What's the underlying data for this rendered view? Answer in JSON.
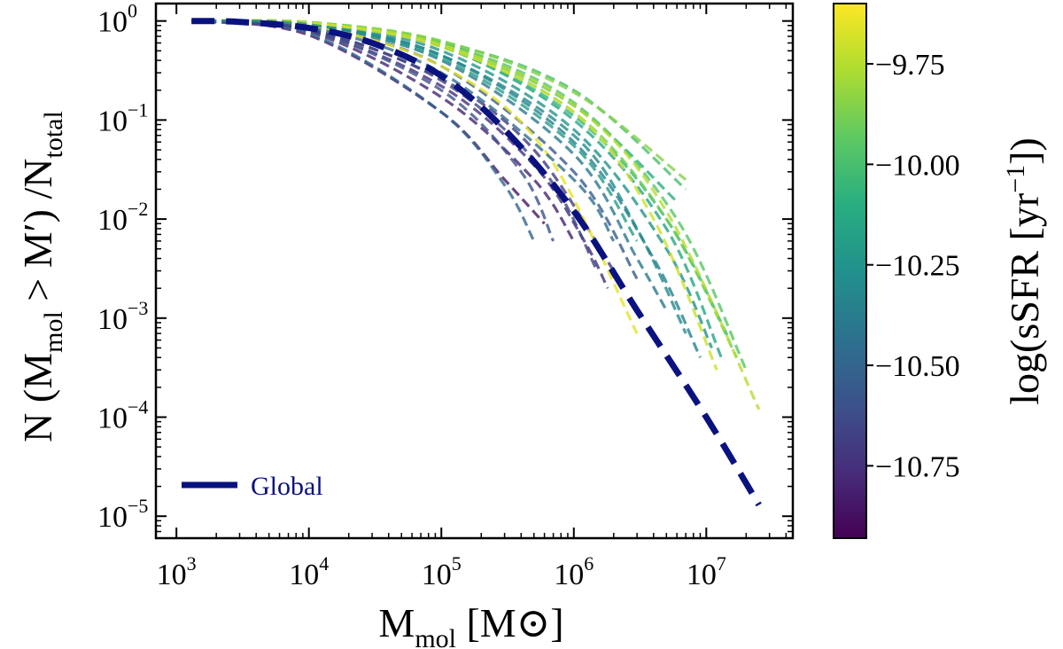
{
  "chart_data": {
    "type": "line",
    "x_scale": "log",
    "y_scale": "log",
    "xlim": [
      700,
      45000000
    ],
    "ylim": [
      6e-06,
      1.5
    ],
    "xlabel": {
      "main": "M",
      "sub": "mol",
      "unit": "[M⊙]"
    },
    "ylabel": {
      "p1": "N (M",
      "sub1": "mol",
      "p2": " > M′) /N",
      "sub2": "total"
    },
    "x_ticks": [
      {
        "value": 1000,
        "base": "10",
        "exp": "3"
      },
      {
        "value": 10000,
        "base": "10",
        "exp": "4"
      },
      {
        "value": 100000,
        "base": "10",
        "exp": "5"
      },
      {
        "value": 1000000,
        "base": "10",
        "exp": "6"
      },
      {
        "value": 10000000,
        "base": "10",
        "exp": "7"
      }
    ],
    "y_ticks": [
      {
        "value": 1,
        "base": "10",
        "exp": "0"
      },
      {
        "value": 0.1,
        "base": "10",
        "exp": "−1"
      },
      {
        "value": 0.01,
        "base": "10",
        "exp": "−2"
      },
      {
        "value": 0.001,
        "base": "10",
        "exp": "−3"
      },
      {
        "value": 0.0001,
        "base": "10",
        "exp": "−4"
      },
      {
        "value": 1e-05,
        "base": "10",
        "exp": "−5"
      }
    ],
    "global_series": {
      "name": "Global",
      "color": "#0a1280",
      "x": [
        1300,
        3000,
        10000,
        30000,
        100000,
        300000,
        1000000,
        3000000,
        10000000,
        25000000
      ],
      "y": [
        1.0,
        0.98,
        0.85,
        0.6,
        0.28,
        0.08,
        0.012,
        0.0012,
        0.0001,
        1.3e-05
      ]
    },
    "galaxy_series": [
      {
        "ssfr": -10.85,
        "x": [
          1300,
          10000,
          100000,
          300000,
          600000
        ],
        "y": [
          1.0,
          0.72,
          0.12,
          0.025,
          0.009
        ]
      },
      {
        "ssfr": -10.8,
        "x": [
          1300,
          10000,
          100000,
          500000,
          1000000
        ],
        "y": [
          1.0,
          0.78,
          0.17,
          0.025,
          0.006
        ]
      },
      {
        "ssfr": -10.75,
        "x": [
          1300,
          10000,
          100000,
          500000,
          1200000,
          1800000
        ],
        "y": [
          1.0,
          0.8,
          0.22,
          0.035,
          0.006,
          0.002
        ]
      },
      {
        "ssfr": -10.7,
        "x": [
          1300,
          10000,
          100000,
          500000,
          2000000
        ],
        "y": [
          1.0,
          0.83,
          0.26,
          0.05,
          0.003
        ]
      },
      {
        "ssfr": -10.6,
        "x": [
          1300,
          10000,
          100000,
          400000,
          700000
        ],
        "y": [
          1.0,
          0.8,
          0.2,
          0.03,
          0.006
        ]
      },
      {
        "ssfr": -10.55,
        "x": [
          1300,
          10000,
          100000,
          1000000,
          3000000
        ],
        "y": [
          1.0,
          0.88,
          0.35,
          0.03,
          0.0025
        ]
      },
      {
        "ssfr": -10.5,
        "x": [
          1300,
          10000,
          100000,
          300000,
          500000
        ],
        "y": [
          1.0,
          0.75,
          0.12,
          0.022,
          0.006
        ]
      },
      {
        "ssfr": -10.4,
        "x": [
          1300,
          10000,
          100000,
          1000000,
          3000000,
          5000000
        ],
        "y": [
          1.0,
          0.9,
          0.4,
          0.045,
          0.004,
          0.0012
        ]
      },
      {
        "ssfr": -10.35,
        "x": [
          1300,
          10000,
          100000,
          1000000,
          4000000,
          9000000
        ],
        "y": [
          1.0,
          0.92,
          0.45,
          0.06,
          0.004,
          0.0004
        ]
      },
      {
        "ssfr": -10.25,
        "x": [
          1300,
          10000,
          100000,
          1000000,
          5000000,
          11000000
        ],
        "y": [
          1.0,
          0.93,
          0.5,
          0.08,
          0.005,
          0.0005
        ]
      },
      {
        "ssfr": -10.2,
        "x": [
          1300,
          10000,
          100000,
          1000000,
          3000000
        ],
        "y": [
          1.0,
          0.9,
          0.42,
          0.055,
          0.006
        ]
      },
      {
        "ssfr": -10.15,
        "x": [
          1300,
          10000,
          100000,
          1000000,
          5000000,
          13000000
        ],
        "y": [
          1.0,
          0.95,
          0.56,
          0.1,
          0.008,
          0.0004
        ]
      },
      {
        "ssfr": -10.1,
        "x": [
          1300,
          10000,
          100000,
          1000000,
          6000000
        ],
        "y": [
          1.0,
          0.96,
          0.6,
          0.14,
          0.015
        ]
      },
      {
        "ssfr": -10.05,
        "x": [
          1300,
          10000,
          100000,
          1000000,
          5000000,
          15000000
        ],
        "y": [
          1.0,
          0.95,
          0.55,
          0.11,
          0.01,
          0.0006
        ]
      },
      {
        "ssfr": -10.0,
        "x": [
          1300,
          10000,
          100000,
          1000000,
          7000000
        ],
        "y": [
          1.0,
          0.97,
          0.62,
          0.2,
          0.02
        ]
      },
      {
        "ssfr": -9.95,
        "x": [
          1300,
          10000,
          100000,
          1000000,
          6000000,
          20000000
        ],
        "y": [
          1.0,
          0.96,
          0.6,
          0.15,
          0.01,
          0.0003
        ]
      },
      {
        "ssfr": -9.9,
        "x": [
          1300,
          10000,
          100000,
          1000000,
          5000000,
          17000000
        ],
        "y": [
          1.0,
          0.95,
          0.58,
          0.12,
          0.01,
          0.0004
        ]
      },
      {
        "ssfr": -9.85,
        "x": [
          1300,
          10000,
          100000,
          1000000,
          7000000
        ],
        "y": [
          1.0,
          0.97,
          0.63,
          0.19,
          0.025
        ]
      },
      {
        "ssfr": -9.75,
        "x": [
          1300,
          10000,
          100000,
          1000000,
          5000000,
          25000000
        ],
        "y": [
          1.0,
          0.96,
          0.58,
          0.14,
          0.012,
          0.00012
        ]
      },
      {
        "ssfr": -9.7,
        "x": [
          1300,
          10000,
          100000,
          1000000,
          4000000,
          12000000
        ],
        "y": [
          1.0,
          0.95,
          0.55,
          0.12,
          0.01,
          0.0003
        ]
      },
      {
        "ssfr": -9.65,
        "x": [
          1300,
          10000,
          100000,
          600000,
          3000000
        ],
        "y": [
          1.0,
          0.9,
          0.35,
          0.05,
          0.0007
        ]
      },
      {
        "ssfr": -10.45,
        "x": [
          1300,
          10000,
          100000,
          1000000,
          2000000
        ],
        "y": [
          1.0,
          0.86,
          0.3,
          0.025,
          0.006
        ]
      },
      {
        "ssfr": -10.65,
        "x": [
          1300,
          10000,
          100000,
          600000,
          1500000
        ],
        "y": [
          1.0,
          0.82,
          0.25,
          0.03,
          0.003
        ]
      },
      {
        "ssfr": -10.3,
        "x": [
          1300,
          10000,
          100000,
          1000000,
          3000000,
          7000000
        ],
        "y": [
          1.0,
          0.92,
          0.45,
          0.07,
          0.008,
          0.0007
        ]
      }
    ],
    "legend": {
      "label": "Global",
      "position": "lower-left"
    },
    "colorbar": {
      "label_prefix": "log(sSFR [yr",
      "label_exp": "−1",
      "label_suffix": "])",
      "range": [
        -10.93,
        -9.6
      ],
      "colormap": "viridis",
      "ticks": [
        {
          "value": -9.75,
          "label": "−9.75"
        },
        {
          "value": -10.0,
          "label": "−10.00"
        },
        {
          "value": -10.25,
          "label": "−10.25"
        },
        {
          "value": -10.5,
          "label": "−10.50"
        },
        {
          "value": -10.75,
          "label": "−10.75"
        }
      ]
    }
  }
}
